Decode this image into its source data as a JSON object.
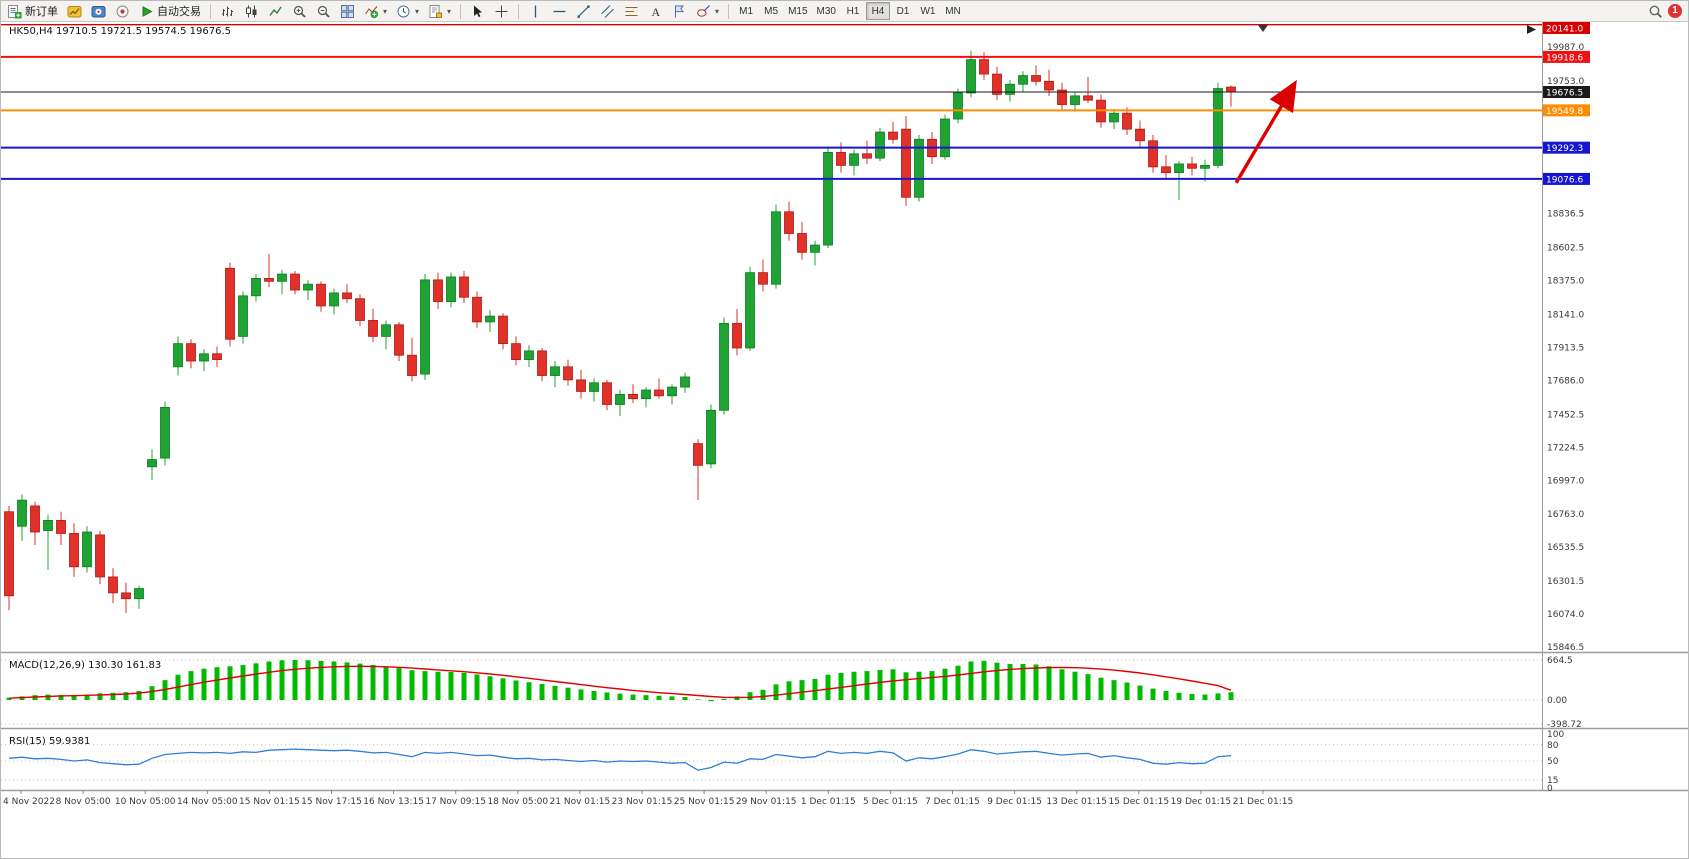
{
  "toolbar": {
    "new_order_label": "新订单",
    "autotrade_label": "自动交易",
    "timeframes": [
      "M1",
      "M5",
      "M15",
      "M30",
      "H1",
      "H4",
      "D1",
      "W1",
      "MN"
    ],
    "active_timeframe": "H4",
    "notification_count": "1"
  },
  "chart": {
    "info": "HK50,H4 19710.5 19721.5 19574.5 19676.5"
  },
  "macd": {
    "label": "MACD(12,26,9) 130.30 161.83"
  },
  "rsi": {
    "label": "RSI(15) 59.9381"
  },
  "chart_data": {
    "type": "candlestick",
    "symbol": "HK50",
    "timeframe": "H4",
    "colors": {
      "up": "#1fa434",
      "up_edge": "#0e7a20",
      "down": "#e23128",
      "down_edge": "#a81c16",
      "macd_hist": "#00bb00",
      "macd_signal": "#e00000",
      "rsi_line": "#2f7ed8",
      "arrow": "#dd0000",
      "grid": "#c0c0c0",
      "border": "#9c9c9c"
    },
    "price_anchors": {
      "top_price": 19987.0,
      "bottom_price": 15846.5
    },
    "price_axis_ticks": [
      19987.0,
      19753.0,
      18836.5,
      18602.5,
      18375.0,
      18141.0,
      17913.5,
      17686.0,
      17452.5,
      17224.5,
      16997.0,
      16763.0,
      16535.5,
      16301.5,
      16074.0,
      15846.5
    ],
    "hlines": [
      {
        "price": 20141.0,
        "label": "20141.0",
        "color": "#d60000",
        "width": 1.4
      },
      {
        "price": 19918.6,
        "label": "19918.6",
        "color": "#ee1111",
        "width": 2
      },
      {
        "price": 19676.5,
        "label": "19676.5",
        "color": "#1a1a1a",
        "width": 1
      },
      {
        "price": 19549.8,
        "label": "19549.8",
        "color": "#ff8c00",
        "width": 2
      },
      {
        "price": 19292.3,
        "label": "19292.3",
        "color": "#1616d0",
        "width": 2
      },
      {
        "price": 19076.6,
        "label": "19076.6",
        "color": "#1616d0",
        "width": 2
      }
    ],
    "current_price": 19676.5,
    "ohlc": [
      [
        16780,
        16820,
        16100,
        16200
      ],
      [
        16680,
        16900,
        16580,
        16860
      ],
      [
        16820,
        16850,
        16550,
        16640
      ],
      [
        16650,
        16760,
        16380,
        16720
      ],
      [
        16720,
        16780,
        16550,
        16630
      ],
      [
        16630,
        16700,
        16330,
        16400
      ],
      [
        16400,
        16680,
        16360,
        16640
      ],
      [
        16620,
        16650,
        16280,
        16330
      ],
      [
        16330,
        16390,
        16150,
        16220
      ],
      [
        16220,
        16290,
        16080,
        16180
      ],
      [
        16180,
        16270,
        16110,
        16250
      ],
      [
        17090,
        17210,
        17000,
        17140
      ],
      [
        17150,
        17540,
        17100,
        17500
      ],
      [
        17780,
        17990,
        17720,
        17940
      ],
      [
        17940,
        17970,
        17770,
        17820
      ],
      [
        17820,
        17900,
        17750,
        17870
      ],
      [
        17870,
        17920,
        17780,
        17830
      ],
      [
        18460,
        18500,
        17920,
        17970
      ],
      [
        17990,
        18300,
        17940,
        18270
      ],
      [
        18270,
        18420,
        18230,
        18390
      ],
      [
        18390,
        18560,
        18330,
        18370
      ],
      [
        18370,
        18450,
        18280,
        18420
      ],
      [
        18420,
        18440,
        18280,
        18310
      ],
      [
        18310,
        18380,
        18240,
        18350
      ],
      [
        18350,
        18370,
        18160,
        18200
      ],
      [
        18200,
        18320,
        18140,
        18290
      ],
      [
        18290,
        18350,
        18220,
        18250
      ],
      [
        18250,
        18280,
        18060,
        18100
      ],
      [
        18100,
        18180,
        17950,
        17990
      ],
      [
        17990,
        18100,
        17900,
        18070
      ],
      [
        18070,
        18090,
        17820,
        17860
      ],
      [
        17860,
        17980,
        17680,
        17720
      ],
      [
        17730,
        18420,
        17690,
        18380
      ],
      [
        18380,
        18430,
        18180,
        18230
      ],
      [
        18230,
        18430,
        18190,
        18400
      ],
      [
        18400,
        18440,
        18220,
        18260
      ],
      [
        18260,
        18300,
        18050,
        18090
      ],
      [
        18090,
        18170,
        18020,
        18130
      ],
      [
        18130,
        18150,
        17900,
        17940
      ],
      [
        17940,
        17990,
        17790,
        17830
      ],
      [
        17830,
        17930,
        17780,
        17890
      ],
      [
        17890,
        17910,
        17680,
        17720
      ],
      [
        17720,
        17820,
        17640,
        17780
      ],
      [
        17780,
        17830,
        17650,
        17690
      ],
      [
        17690,
        17760,
        17560,
        17610
      ],
      [
        17610,
        17700,
        17540,
        17670
      ],
      [
        17670,
        17690,
        17480,
        17520
      ],
      [
        17520,
        17620,
        17440,
        17590
      ],
      [
        17590,
        17660,
        17530,
        17560
      ],
      [
        17560,
        17640,
        17500,
        17620
      ],
      [
        17620,
        17700,
        17560,
        17580
      ],
      [
        17580,
        17660,
        17520,
        17640
      ],
      [
        17640,
        17740,
        17600,
        17710
      ],
      [
        17250,
        17280,
        16860,
        17100
      ],
      [
        17110,
        17520,
        17080,
        17480
      ],
      [
        17480,
        18120,
        17450,
        18080
      ],
      [
        18080,
        18180,
        17860,
        17910
      ],
      [
        17910,
        18470,
        17890,
        18430
      ],
      [
        18430,
        18520,
        18300,
        18350
      ],
      [
        18350,
        18900,
        18320,
        18850
      ],
      [
        18850,
        18920,
        18650,
        18700
      ],
      [
        18700,
        18780,
        18520,
        18570
      ],
      [
        18570,
        18650,
        18480,
        18620
      ],
      [
        18620,
        19300,
        18600,
        19260
      ],
      [
        19260,
        19330,
        19120,
        19170
      ],
      [
        19170,
        19280,
        19100,
        19250
      ],
      [
        19250,
        19340,
        19180,
        19220
      ],
      [
        19220,
        19430,
        19200,
        19400
      ],
      [
        19400,
        19470,
        19320,
        19350
      ],
      [
        19420,
        19510,
        18890,
        18950
      ],
      [
        18950,
        19380,
        18920,
        19350
      ],
      [
        19350,
        19400,
        19180,
        19230
      ],
      [
        19230,
        19520,
        19210,
        19490
      ],
      [
        19490,
        19700,
        19460,
        19670
      ],
      [
        19670,
        19960,
        19640,
        19900
      ],
      [
        19900,
        19950,
        19760,
        19800
      ],
      [
        19800,
        19850,
        19620,
        19660
      ],
      [
        19660,
        19760,
        19610,
        19730
      ],
      [
        19730,
        19820,
        19680,
        19790
      ],
      [
        19790,
        19860,
        19720,
        19750
      ],
      [
        19750,
        19830,
        19650,
        19690
      ],
      [
        19690,
        19740,
        19550,
        19590
      ],
      [
        19590,
        19680,
        19540,
        19650
      ],
      [
        19650,
        19780,
        19600,
        19620
      ],
      [
        19620,
        19660,
        19430,
        19470
      ],
      [
        19470,
        19560,
        19420,
        19530
      ],
      [
        19530,
        19570,
        19380,
        19420
      ],
      [
        19420,
        19480,
        19300,
        19340
      ],
      [
        19340,
        19380,
        19120,
        19160
      ],
      [
        19160,
        19240,
        19080,
        19120
      ],
      [
        19120,
        19200,
        18930,
        19180
      ],
      [
        19180,
        19230,
        19100,
        19150
      ],
      [
        19150,
        19210,
        19060,
        19170
      ],
      [
        19170,
        19740,
        19150,
        19700
      ],
      [
        19710.5,
        19721.5,
        19574.5,
        19676.5
      ]
    ],
    "macd": {
      "hist": [
        40,
        60,
        80,
        90,
        85,
        70,
        90,
        110,
        120,
        130,
        150,
        230,
        330,
        420,
        480,
        520,
        545,
        560,
        580,
        610,
        640,
        660,
        665,
        660,
        650,
        640,
        625,
        605,
        580,
        560,
        530,
        495,
        480,
        470,
        465,
        450,
        425,
        395,
        360,
        325,
        295,
        265,
        235,
        205,
        175,
        150,
        125,
        105,
        90,
        80,
        70,
        60,
        50,
        10,
        -20,
        20,
        60,
        130,
        170,
        260,
        310,
        330,
        350,
        420,
        450,
        470,
        480,
        500,
        510,
        460,
        470,
        480,
        520,
        570,
        640,
        650,
        620,
        600,
        600,
        590,
        560,
        510,
        470,
        430,
        370,
        330,
        290,
        240,
        190,
        150,
        120,
        100,
        90,
        110,
        130.3
      ],
      "signal": [
        30,
        40,
        50,
        60,
        68,
        72,
        78,
        85,
        92,
        100,
        115,
        140,
        175,
        215,
        255,
        295,
        330,
        365,
        398,
        430,
        460,
        488,
        510,
        528,
        542,
        552,
        558,
        560,
        558,
        552,
        543,
        530,
        515,
        500,
        485,
        470,
        452,
        432,
        410,
        385,
        360,
        334,
        308,
        282,
        256,
        230,
        205,
        182,
        160,
        140,
        122,
        106,
        92,
        75,
        58,
        45,
        40,
        45,
        58,
        80,
        105,
        130,
        155,
        182,
        210,
        238,
        265,
        292,
        318,
        338,
        355,
        372,
        392,
        415,
        442,
        468,
        490,
        508,
        522,
        532,
        538,
        540,
        536,
        528,
        514,
        496,
        474,
        448,
        418,
        386,
        352,
        316,
        278,
        240,
        161.83
      ],
      "range": [
        -398.72,
        664.5
      ],
      "ticks": [
        [
          664.5,
          "664.5"
        ],
        [
          0,
          "0.00"
        ],
        [
          -398.72,
          "-398.72"
        ]
      ]
    },
    "rsi": {
      "values": [
        55,
        57,
        54,
        55,
        53,
        50,
        52,
        47,
        45,
        43,
        44,
        55,
        62,
        64,
        66,
        65,
        66,
        64,
        67,
        66,
        70,
        71,
        72,
        71,
        70,
        69,
        70,
        68,
        65,
        66,
        62,
        58,
        66,
        64,
        66,
        63,
        60,
        61,
        57,
        54,
        55,
        52,
        53,
        51,
        49,
        51,
        48,
        50,
        49,
        50,
        48,
        46,
        47,
        33,
        38,
        48,
        46,
        54,
        53,
        62,
        59,
        56,
        58,
        68,
        64,
        66,
        64,
        68,
        65,
        50,
        56,
        54,
        58,
        63,
        71,
        68,
        63,
        65,
        67,
        68,
        64,
        61,
        63,
        64,
        57,
        60,
        56,
        53,
        46,
        44,
        47,
        45,
        46,
        58,
        59.94
      ],
      "range": [
        0,
        100
      ],
      "ticks": [
        [
          100,
          "100"
        ],
        [
          80,
          "80"
        ],
        [
          50,
          "50"
        ],
        [
          15,
          "15"
        ],
        [
          0,
          "0"
        ]
      ],
      "levels": [
        80,
        50,
        15
      ]
    },
    "time_labels": [
      "4 Nov 2022",
      "8 Nov 05:00",
      "10 Nov 05:00",
      "14 Nov 05:00",
      "15 Nov 01:15",
      "15 Nov 17:15",
      "16 Nov 13:15",
      "17 Nov 09:15",
      "18 Nov 05:00",
      "21 Nov 01:15",
      "23 Nov 01:15",
      "25 Nov 01:15",
      "29 Nov 01:15",
      "1 Dec 01:15",
      "5 Dec 01:15",
      "7 Dec 01:15",
      "9 Dec 01:15",
      "13 Dec 01:15",
      "15 Dec 01:15",
      "19 Dec 01:15",
      "21 Dec 01:15"
    ],
    "arrow": {
      "from": [
        94.4,
        19050
      ],
      "to": [
        98.8,
        19720
      ]
    }
  }
}
